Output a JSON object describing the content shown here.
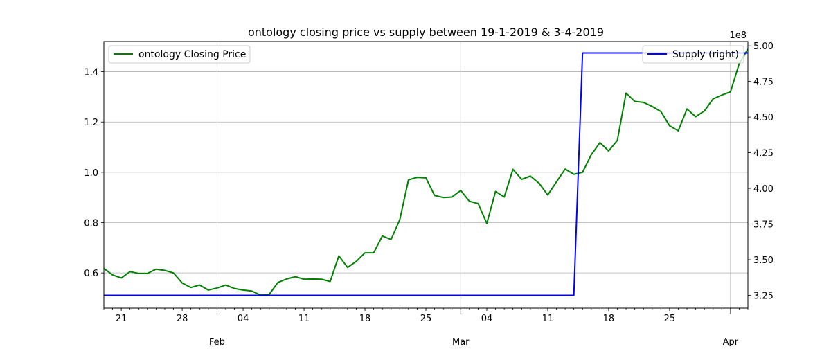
{
  "chart_data": {
    "type": "line",
    "title": "ontology closing price vs supply between 19-1-2019 & 3-4-2019",
    "x_axis": {
      "day_ticks": [
        {
          "date": "2019-01-21",
          "label": "21"
        },
        {
          "date": "2019-01-28",
          "label": "28"
        },
        {
          "date": "2019-02-04",
          "label": "04"
        },
        {
          "date": "2019-02-11",
          "label": "11"
        },
        {
          "date": "2019-02-18",
          "label": "18"
        },
        {
          "date": "2019-02-25",
          "label": "25"
        },
        {
          "date": "2019-03-04",
          "label": "04"
        },
        {
          "date": "2019-03-11",
          "label": "11"
        },
        {
          "date": "2019-03-18",
          "label": "18"
        },
        {
          "date": "2019-03-25",
          "label": "25"
        }
      ],
      "month_ticks": [
        {
          "date": "2019-02-01",
          "label": "Feb"
        },
        {
          "date": "2019-03-01",
          "label": "Mar"
        },
        {
          "date": "2019-04-01",
          "label": "Apr"
        }
      ],
      "range": [
        "2019-01-19",
        "2019-04-03"
      ]
    },
    "y_left": {
      "ylim": [
        0.46,
        1.52
      ],
      "ticks": [
        {
          "value": 0.6,
          "label": "0.6"
        },
        {
          "value": 0.8,
          "label": "0.8"
        },
        {
          "value": 1.0,
          "label": "1.0"
        },
        {
          "value": 1.2,
          "label": "1.2"
        },
        {
          "value": 1.4,
          "label": "1.4"
        }
      ]
    },
    "y_right": {
      "ylim": [
        3.16,
        5.03
      ],
      "offset_label": "1e8",
      "ticks": [
        {
          "value": 3.25,
          "label": "3.25"
        },
        {
          "value": 3.5,
          "label": "3.50"
        },
        {
          "value": 3.75,
          "label": "3.75"
        },
        {
          "value": 4.0,
          "label": "4.00"
        },
        {
          "value": 4.25,
          "label": "4.25"
        },
        {
          "value": 4.5,
          "label": "4.50"
        },
        {
          "value": 4.75,
          "label": "4.75"
        },
        {
          "value": 5.0,
          "label": "5.00"
        }
      ]
    },
    "grid": true,
    "series": [
      {
        "name": "ontology Closing Price",
        "axis": "left",
        "color": "#008000",
        "legend_position": "top-left",
        "x": [
          "2019-01-19",
          "2019-01-20",
          "2019-01-21",
          "2019-01-22",
          "2019-01-23",
          "2019-01-24",
          "2019-01-25",
          "2019-01-26",
          "2019-01-27",
          "2019-01-28",
          "2019-01-29",
          "2019-01-30",
          "2019-01-31",
          "2019-02-01",
          "2019-02-02",
          "2019-02-03",
          "2019-02-04",
          "2019-02-05",
          "2019-02-06",
          "2019-02-07",
          "2019-02-08",
          "2019-02-09",
          "2019-02-10",
          "2019-02-11",
          "2019-02-12",
          "2019-02-13",
          "2019-02-14",
          "2019-02-15",
          "2019-02-16",
          "2019-02-17",
          "2019-02-18",
          "2019-02-19",
          "2019-02-20",
          "2019-02-21",
          "2019-02-22",
          "2019-02-23",
          "2019-02-24",
          "2019-02-25",
          "2019-02-26",
          "2019-02-27",
          "2019-02-28",
          "2019-03-01",
          "2019-03-02",
          "2019-03-03",
          "2019-03-04",
          "2019-03-05",
          "2019-03-06",
          "2019-03-07",
          "2019-03-08",
          "2019-03-09",
          "2019-03-10",
          "2019-03-11",
          "2019-03-12",
          "2019-03-13",
          "2019-03-14",
          "2019-03-15",
          "2019-03-16",
          "2019-03-17",
          "2019-03-18",
          "2019-03-19",
          "2019-03-20",
          "2019-03-21",
          "2019-03-22",
          "2019-03-23",
          "2019-03-24",
          "2019-03-25",
          "2019-03-26",
          "2019-03-27",
          "2019-03-28",
          "2019-03-29",
          "2019-03-30",
          "2019-03-31",
          "2019-04-01",
          "2019-04-02",
          "2019-04-03"
        ],
        "values": [
          0.618,
          0.592,
          0.58,
          0.605,
          0.598,
          0.598,
          0.615,
          0.61,
          0.6,
          0.56,
          0.542,
          0.552,
          0.532,
          0.54,
          0.552,
          0.538,
          0.532,
          0.528,
          0.512,
          0.515,
          0.562,
          0.576,
          0.585,
          0.575,
          0.576,
          0.575,
          0.566,
          0.668,
          0.622,
          0.646,
          0.68,
          0.68,
          0.747,
          0.733,
          0.812,
          0.97,
          0.98,
          0.978,
          0.908,
          0.9,
          0.902,
          0.928,
          0.885,
          0.876,
          0.797,
          0.924,
          0.902,
          1.012,
          0.972,
          0.985,
          0.957,
          0.91,
          0.962,
          1.013,
          0.992,
          1.0,
          1.07,
          1.118,
          1.085,
          1.127,
          1.315,
          1.282,
          1.278,
          1.262,
          1.242,
          1.185,
          1.165,
          1.252,
          1.221,
          1.244,
          1.292,
          1.307,
          1.32,
          1.432,
          1.49
        ]
      },
      {
        "name": "Supply (right)",
        "axis": "right",
        "color": "#0000ff",
        "legend_position": "top-right",
        "x": [
          "2019-01-19",
          "2019-03-14",
          "2019-03-15",
          "2019-04-03"
        ],
        "values": [
          3.25,
          3.25,
          4.95,
          4.95
        ]
      }
    ]
  }
}
